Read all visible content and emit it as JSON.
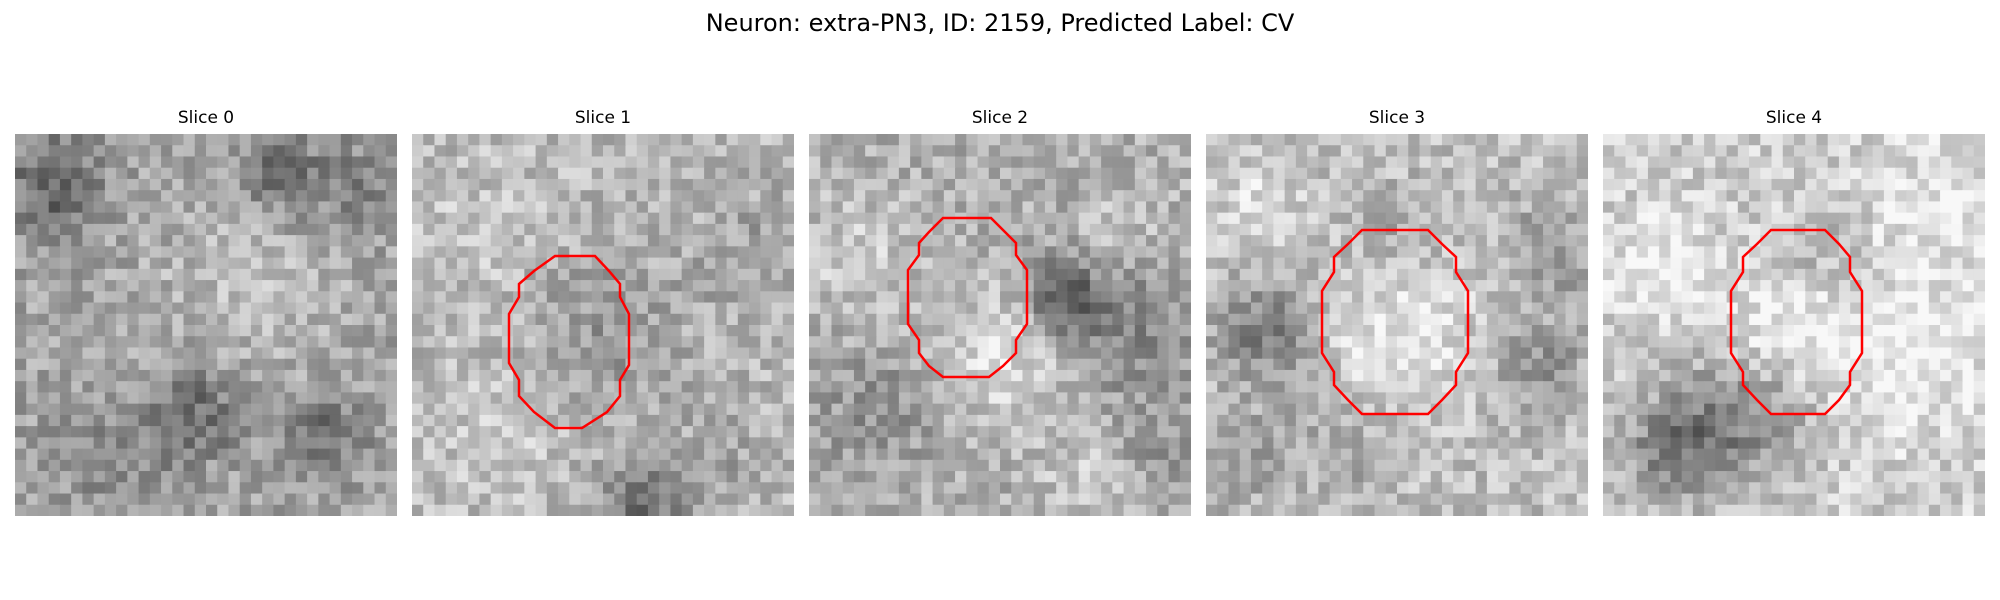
{
  "figure": {
    "title": "Neuron: extra-PN3, ID: 2159, Predicted Label: CV"
  },
  "panels": [
    {
      "title": "Slice 0",
      "outline_shown": false,
      "colormap": "grayscale"
    },
    {
      "title": "Slice 1",
      "outline_shown": true,
      "colormap": "grayscale"
    },
    {
      "title": "Slice 2",
      "outline_shown": true,
      "colormap": "grayscale"
    },
    {
      "title": "Slice 3",
      "outline_shown": true,
      "colormap": "grayscale"
    },
    {
      "title": "Slice 4",
      "outline_shown": true,
      "colormap": "grayscale"
    }
  ],
  "colors": {
    "outline": "#ff0000",
    "background": "#ffffff"
  }
}
